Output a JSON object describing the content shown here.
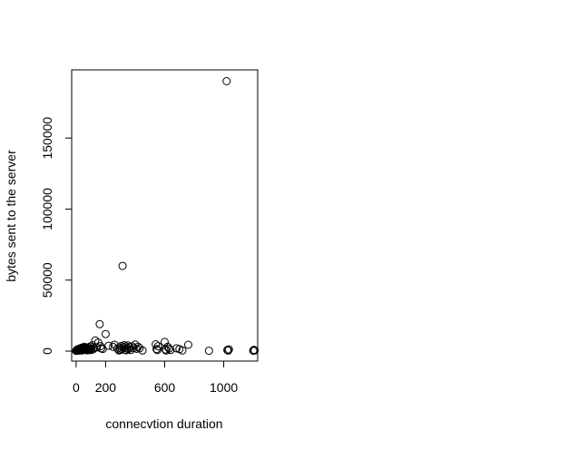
{
  "chart_data": {
    "type": "scatter",
    "title": "",
    "xlabel": "connecvtion duration",
    "ylabel": "bytes sent to the server",
    "xlim": [
      -30,
      1230
    ],
    "ylim": [
      -7000,
      198000
    ],
    "x_ticks": [
      0,
      200,
      600,
      1000
    ],
    "x_tick_labels": [
      "0",
      "200",
      "600",
      "1000"
    ],
    "y_ticks": [
      0,
      50000,
      100000,
      150000
    ],
    "y_tick_labels": [
      "0",
      "50000",
      "100000",
      "150000"
    ],
    "grid": false,
    "legend": "none",
    "marker": "open-circle",
    "marker_color": "#000000",
    "points": [
      [
        0,
        200
      ],
      [
        3,
        500
      ],
      [
        5,
        900
      ],
      [
        8,
        300
      ],
      [
        10,
        1200
      ],
      [
        12,
        600
      ],
      [
        15,
        1500
      ],
      [
        18,
        800
      ],
      [
        20,
        400
      ],
      [
        22,
        1800
      ],
      [
        25,
        1000
      ],
      [
        28,
        2000
      ],
      [
        30,
        700
      ],
      [
        33,
        1300
      ],
      [
        35,
        2200
      ],
      [
        38,
        500
      ],
      [
        40,
        1600
      ],
      [
        42,
        2500
      ],
      [
        45,
        900
      ],
      [
        48,
        1900
      ],
      [
        50,
        2400
      ],
      [
        52,
        1100
      ],
      [
        55,
        3000
      ],
      [
        58,
        1400
      ],
      [
        60,
        2100
      ],
      [
        62,
        800
      ],
      [
        65,
        2600
      ],
      [
        68,
        1700
      ],
      [
        70,
        1200
      ],
      [
        72,
        2300
      ],
      [
        75,
        600
      ],
      [
        78,
        1900
      ],
      [
        80,
        1000
      ],
      [
        85,
        2700
      ],
      [
        88,
        1500
      ],
      [
        90,
        700
      ],
      [
        95,
        3200
      ],
      [
        100,
        1800
      ],
      [
        105,
        900
      ],
      [
        110,
        4200
      ],
      [
        115,
        1300
      ],
      [
        120,
        2000
      ],
      [
        130,
        7500
      ],
      [
        140,
        2600
      ],
      [
        150,
        6000
      ],
      [
        160,
        19000
      ],
      [
        165,
        3500
      ],
      [
        170,
        2000
      ],
      [
        180,
        1500
      ],
      [
        200,
        12000
      ],
      [
        220,
        3800
      ],
      [
        250,
        3000
      ],
      [
        260,
        4500
      ],
      [
        280,
        1800
      ],
      [
        290,
        500
      ],
      [
        295,
        2500
      ],
      [
        300,
        800
      ],
      [
        305,
        3600
      ],
      [
        310,
        1400
      ],
      [
        315,
        60000
      ],
      [
        320,
        2800
      ],
      [
        325,
        4200
      ],
      [
        330,
        1000
      ],
      [
        335,
        3300
      ],
      [
        340,
        600
      ],
      [
        345,
        2000
      ],
      [
        350,
        4000
      ],
      [
        355,
        1500
      ],
      [
        360,
        2900
      ],
      [
        370,
        800
      ],
      [
        380,
        3400
      ],
      [
        390,
        2200
      ],
      [
        400,
        4600
      ],
      [
        410,
        1600
      ],
      [
        420,
        3000
      ],
      [
        430,
        2000
      ],
      [
        450,
        500
      ],
      [
        540,
        4800
      ],
      [
        545,
        1500
      ],
      [
        550,
        800
      ],
      [
        555,
        3500
      ],
      [
        600,
        6500
      ],
      [
        605,
        1200
      ],
      [
        610,
        500
      ],
      [
        620,
        3000
      ],
      [
        630,
        1800
      ],
      [
        640,
        800
      ],
      [
        680,
        2000
      ],
      [
        700,
        1400
      ],
      [
        720,
        500
      ],
      [
        760,
        4500
      ],
      [
        900,
        300
      ],
      [
        1020,
        190000
      ],
      [
        1025,
        800
      ],
      [
        1030,
        400
      ],
      [
        1035,
        1200
      ],
      [
        1200,
        300
      ],
      [
        1205,
        900
      ],
      [
        1210,
        500
      ]
    ]
  }
}
